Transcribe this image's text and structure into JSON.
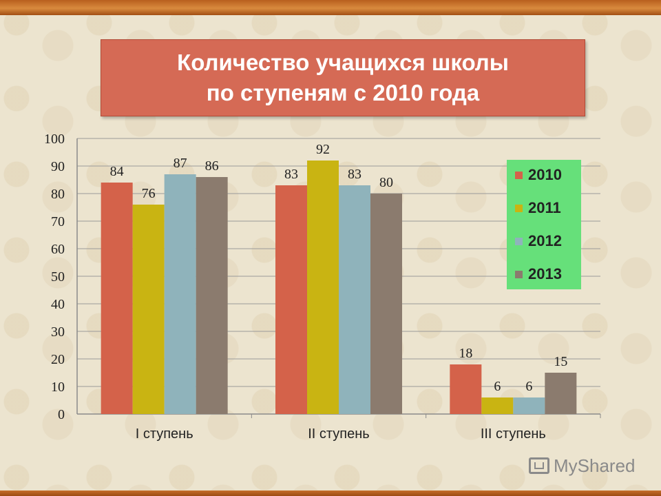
{
  "title": {
    "line1": "Количество учащихся школы",
    "line2": "по ступеням с 2010 года"
  },
  "watermark": "MyShared",
  "colors": {
    "2010": "#d4624a",
    "2011": "#c9b412",
    "2012": "#8fb3bb",
    "2013": "#8b7b6e",
    "title_box": "#d56a55",
    "legend_box": "#66e07a"
  },
  "chart_data": {
    "type": "bar",
    "categories": [
      "I ступень",
      "II ступень",
      "III ступень"
    ],
    "series": [
      {
        "name": "2010",
        "values": [
          84,
          83,
          18
        ]
      },
      {
        "name": "2011",
        "values": [
          76,
          92,
          6
        ]
      },
      {
        "name": "2012",
        "values": [
          87,
          83,
          6
        ]
      },
      {
        "name": "2013",
        "values": [
          86,
          80,
          15
        ]
      }
    ],
    "ylim": [
      0,
      100
    ],
    "yticks": [
      0,
      10,
      20,
      30,
      40,
      50,
      60,
      70,
      80,
      90,
      100
    ],
    "grid": true,
    "data_labels": true,
    "legend_position": "right"
  }
}
